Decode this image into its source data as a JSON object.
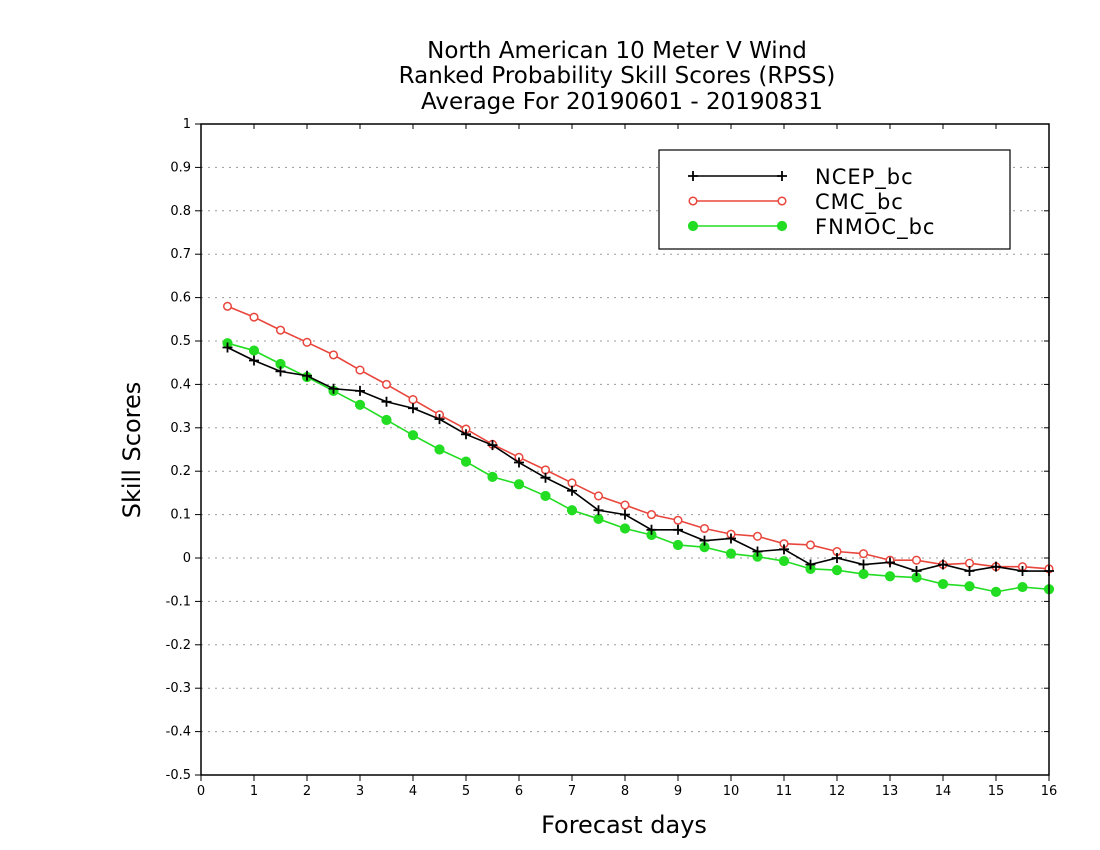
{
  "chart_data": {
    "type": "line",
    "title": [
      "North American 10 Meter V Wind",
      "Ranked Probability Skill Scores (RPSS)",
      "Average For 20190601 - 20190831"
    ],
    "xlabel": "Forecast days",
    "ylabel": "Skill Scores",
    "xlim": [
      0,
      16
    ],
    "ylim": [
      -0.5,
      1
    ],
    "xticks": [
      "0",
      "1",
      "2",
      "3",
      "4",
      "5",
      "6",
      "7",
      "8",
      "9",
      "10",
      "11",
      "12",
      "13",
      "14",
      "15",
      "16"
    ],
    "yticks": [
      "-0.5",
      "-0.4",
      "-0.3",
      "-0.2",
      "-0.1",
      "0",
      "0.1",
      "0.2",
      "0.3",
      "0.4",
      "0.5",
      "0.6",
      "0.7",
      "0.8",
      "0.9",
      "1"
    ],
    "grid": true,
    "legend_position": "top-right",
    "x": [
      0.5,
      1,
      1.5,
      2,
      2.5,
      3,
      3.5,
      4,
      4.5,
      5,
      5.5,
      6,
      6.5,
      7,
      7.5,
      8,
      8.5,
      9,
      9.5,
      10,
      10.5,
      11,
      11.5,
      12,
      12.5,
      13,
      13.5,
      14,
      14.5,
      15,
      15.5,
      16
    ],
    "series": [
      {
        "name": "NCEP_bc",
        "color": "#000000",
        "marker": "plus",
        "values": [
          0.485,
          0.455,
          0.43,
          0.42,
          0.39,
          0.385,
          0.36,
          0.345,
          0.32,
          0.285,
          0.26,
          0.22,
          0.185,
          0.155,
          0.11,
          0.1,
          0.065,
          0.065,
          0.04,
          0.045,
          0.015,
          0.02,
          -0.015,
          0.0,
          -0.015,
          -0.01,
          -0.03,
          -0.015,
          -0.03,
          -0.02,
          -0.03,
          -0.03
        ]
      },
      {
        "name": "CMC_bc",
        "color": "#e8463c",
        "marker": "open-circle",
        "values": [
          0.58,
          0.555,
          0.525,
          0.497,
          0.468,
          0.433,
          0.4,
          0.365,
          0.33,
          0.297,
          0.262,
          0.232,
          0.203,
          0.173,
          0.143,
          0.122,
          0.1,
          0.087,
          0.068,
          0.055,
          0.05,
          0.033,
          0.03,
          0.015,
          0.01,
          -0.005,
          -0.005,
          -0.015,
          -0.012,
          -0.02,
          -0.02,
          -0.025
        ]
      },
      {
        "name": "FNMOC_bc",
        "color": "#22dd22",
        "marker": "filled-circle",
        "values": [
          0.495,
          0.478,
          0.447,
          0.417,
          0.385,
          0.353,
          0.318,
          0.283,
          0.25,
          0.222,
          0.187,
          0.17,
          0.143,
          0.11,
          0.09,
          0.068,
          0.053,
          0.03,
          0.025,
          0.01,
          0.003,
          -0.007,
          -0.025,
          -0.028,
          -0.037,
          -0.042,
          -0.045,
          -0.06,
          -0.065,
          -0.078,
          -0.067,
          -0.072
        ]
      }
    ]
  }
}
